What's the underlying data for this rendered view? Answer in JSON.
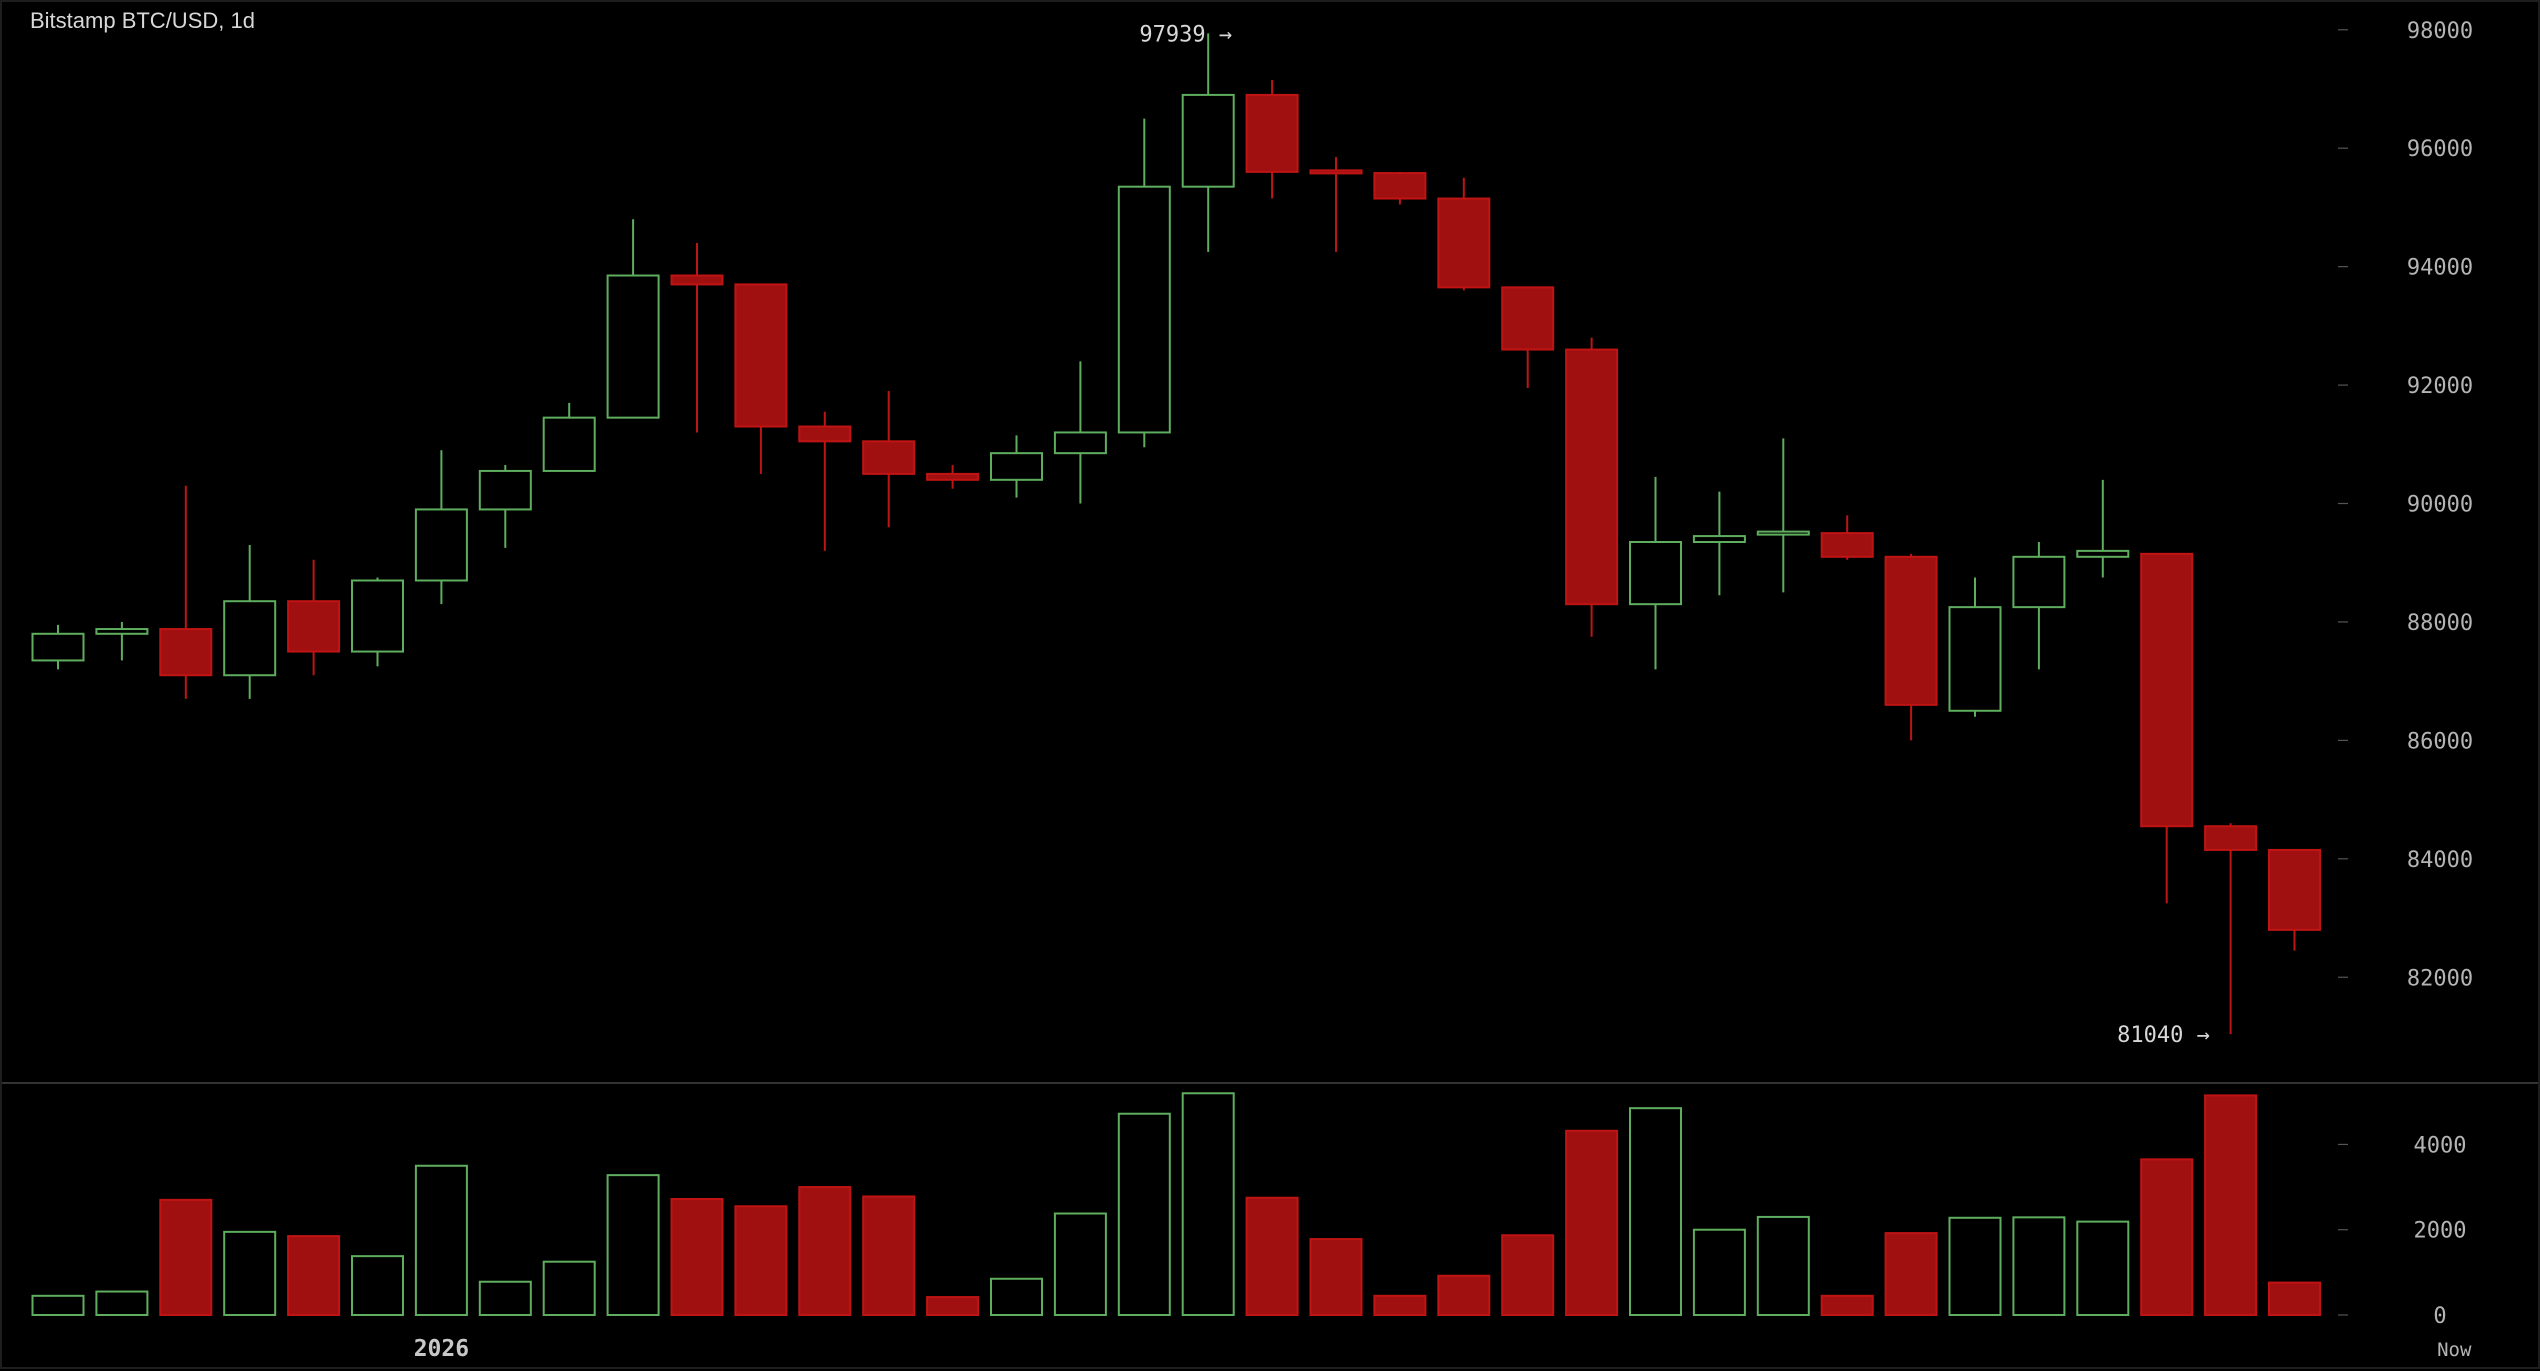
{
  "window": {
    "title": "Bitstamp BTC/USD, 1d"
  },
  "chart_data": [
    {
      "type": "candlestick",
      "title": "Bitstamp BTC/USD, 1d",
      "ylim": [
        80400,
        98300
      ],
      "yticks": [
        82000,
        84000,
        86000,
        88000,
        90000,
        92000,
        94000,
        96000,
        98000
      ],
      "ytick_labels": [
        "82000",
        "84000",
        "86000",
        "88000",
        "90000",
        "92000",
        "94000",
        "96000",
        "98000"
      ],
      "xtick_labels": [
        {
          "label": "2026",
          "index": 6
        },
        {
          "label": "Now",
          "index": 37.5
        }
      ],
      "annotations": [
        {
          "text": "97939 →",
          "index": 18.5,
          "value": 97939
        },
        {
          "text": "81040 →",
          "index": 33.8,
          "value": 81040
        }
      ],
      "colors": {
        "up": "#5fae5f",
        "down": "#a01010",
        "down_outline": "#c01414",
        "text": "#d8d8d8",
        "axis_text": "#b4b4b4"
      },
      "candles": [
        {
          "o": 87350,
          "h": 87950,
          "l": 87200,
          "c": 87800
        },
        {
          "o": 87800,
          "h": 88000,
          "l": 87350,
          "c": 87880
        },
        {
          "o": 87880,
          "h": 90300,
          "l": 86700,
          "c": 87100
        },
        {
          "o": 87100,
          "h": 89300,
          "l": 86700,
          "c": 88350
        },
        {
          "o": 88350,
          "h": 89050,
          "l": 87100,
          "c": 87500
        },
        {
          "o": 87500,
          "h": 88750,
          "l": 87250,
          "c": 88700
        },
        {
          "o": 88700,
          "h": 90900,
          "l": 88300,
          "c": 89900
        },
        {
          "o": 89900,
          "h": 90650,
          "l": 89250,
          "c": 90550
        },
        {
          "o": 90550,
          "h": 91700,
          "l": 90550,
          "c": 91450
        },
        {
          "o": 91450,
          "h": 94800,
          "l": 91450,
          "c": 93850
        },
        {
          "o": 93850,
          "h": 94400,
          "l": 91200,
          "c": 93700
        },
        {
          "o": 93700,
          "h": 93700,
          "l": 90500,
          "c": 91300
        },
        {
          "o": 91300,
          "h": 91550,
          "l": 89200,
          "c": 91050
        },
        {
          "o": 91050,
          "h": 91900,
          "l": 89600,
          "c": 90500
        },
        {
          "o": 90500,
          "h": 90650,
          "l": 90250,
          "c": 90400
        },
        {
          "o": 90400,
          "h": 91150,
          "l": 90100,
          "c": 90850
        },
        {
          "o": 90850,
          "h": 92400,
          "l": 90000,
          "c": 91200
        },
        {
          "o": 91200,
          "h": 96500,
          "l": 90950,
          "c": 95350
        },
        {
          "o": 95350,
          "h": 97939,
          "l": 94250,
          "c": 96900
        },
        {
          "o": 96900,
          "h": 97150,
          "l": 95150,
          "c": 95600
        },
        {
          "o": 95600,
          "h": 95850,
          "l": 94250,
          "c": 95580
        },
        {
          "o": 95580,
          "h": 95600,
          "l": 95050,
          "c": 95150
        },
        {
          "o": 95150,
          "h": 95500,
          "l": 93600,
          "c": 93650
        },
        {
          "o": 93650,
          "h": 93650,
          "l": 91950,
          "c": 92600
        },
        {
          "o": 92600,
          "h": 92800,
          "l": 87750,
          "c": 88300
        },
        {
          "o": 88300,
          "h": 90450,
          "l": 87200,
          "c": 89350
        },
        {
          "o": 89350,
          "h": 90200,
          "l": 88450,
          "c": 89450
        },
        {
          "o": 89450,
          "h": 91100,
          "l": 88500,
          "c": 89500
        },
        {
          "o": 89500,
          "h": 89800,
          "l": 89050,
          "c": 89100
        },
        {
          "o": 89100,
          "h": 89150,
          "l": 86000,
          "c": 86600
        },
        {
          "o": 86500,
          "h": 88750,
          "l": 86400,
          "c": 88250
        },
        {
          "o": 88250,
          "h": 89350,
          "l": 87200,
          "c": 89100
        },
        {
          "o": 89100,
          "h": 90400,
          "l": 88750,
          "c": 89200
        },
        {
          "o": 89150,
          "h": 89150,
          "l": 83250,
          "c": 84550
        },
        {
          "o": 84550,
          "h": 84600,
          "l": 81040,
          "c": 84150
        },
        {
          "o": 84150,
          "h": 84150,
          "l": 82450,
          "c": 82800
        }
      ],
      "volume": {
        "ylim": [
          0,
          5300
        ],
        "yticks": [
          0,
          2000,
          4000
        ],
        "ytick_labels": [
          "0",
          "2000",
          "4000"
        ],
        "values": [
          450,
          550,
          2700,
          1950,
          1850,
          1380,
          3500,
          780,
          1250,
          3280,
          2720,
          2550,
          3000,
          2780,
          420,
          850,
          2380,
          4720,
          5200,
          2750,
          1780,
          450,
          920,
          1870,
          4320,
          4850,
          2000,
          2300,
          450,
          1920,
          2280,
          2290,
          2190,
          3650,
          5150,
          760
        ]
      }
    }
  ]
}
